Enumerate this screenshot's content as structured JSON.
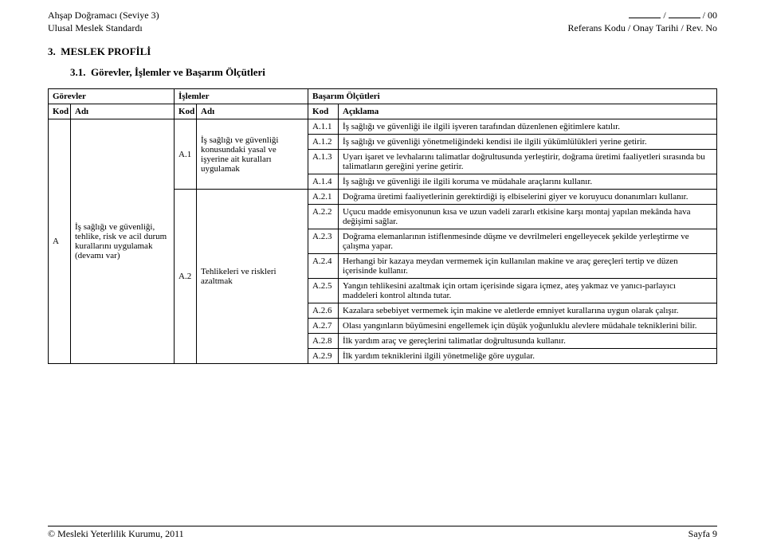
{
  "header": {
    "left_line1": "Ahşap Doğramacı (Seviye 3)",
    "left_line2": "Ulusal Meslek Standardı",
    "right_line1_sep": " / ",
    "right_line1_suffix": " / 00",
    "right_line2": "Referans Kodu / Onay Tarihi / Rev. No"
  },
  "section": {
    "num": "3.",
    "title": "MESLEK PROFİLİ",
    "sub_num": "3.1.",
    "sub_title": "Görevler, İşlemler ve Başarım Ölçütleri"
  },
  "table": {
    "h_gorevler": "Görevler",
    "h_islemler": "İşlemler",
    "h_basarim": "Başarım Ölçütleri",
    "h_kod": "Kod",
    "h_adi": "Adı",
    "h_aciklama": "Açıklama",
    "gorev_kod": "A",
    "gorev_adi": "İş sağlığı ve güvenliği, tehlike, risk ve acil durum kurallarını uygulamak (devamı var)",
    "islem1_kod": "A.1",
    "islem1_adi": "İş sağlığı ve güvenliği konusundaki yasal ve işyerine ait kuralları uygulamak",
    "islem2_kod": "A.2",
    "islem2_adi": "Tehlikeleri ve riskleri azaltmak",
    "rows": [
      {
        "kod": "A.1.1",
        "acik": "İş sağlığı ve güvenliği ile ilgili işveren tarafından düzenlenen eğitimlere katılır."
      },
      {
        "kod": "A.1.2",
        "acik": "İş sağlığı ve güvenliği yönetmeliğindeki kendisi ile ilgili yükümlülükleri yerine getirir."
      },
      {
        "kod": "A.1.3",
        "acik": "Uyarı işaret ve levhalarını talimatlar doğrultusunda yerleştirir, doğrama üretimi faaliyetleri sırasında bu talimatların gereğini yerine getirir."
      },
      {
        "kod": "A.1.4",
        "acik": "İş sağlığı ve güvenliği ile ilgili koruma ve müdahale araçlarını kullanır."
      },
      {
        "kod": "A.2.1",
        "acik": "Doğrama üretimi faaliyetlerinin gerektirdiği iş elbiselerini giyer ve koruyucu donanımları kullanır."
      },
      {
        "kod": "A.2.2",
        "acik": "Uçucu madde emisyonunun kısa ve uzun vadeli zararlı etkisine karşı montaj yapılan mekânda hava değişimi sağlar."
      },
      {
        "kod": "A.2.3",
        "acik": "Doğrama elemanlarının istiflenmesinde düşme ve devrilmeleri engelleyecek şekilde yerleştirme ve çalışma yapar."
      },
      {
        "kod": "A.2.4",
        "acik": "Herhangi bir kazaya meydan vermemek için kullanılan makine ve araç gereçleri tertip ve düzen içerisinde kullanır."
      },
      {
        "kod": "A.2.5",
        "acik": "Yangın tehlikesini azaltmak için ortam içerisinde sigara içmez, ateş yakmaz ve yanıcı-parlayıcı maddeleri kontrol altında tutar."
      },
      {
        "kod": "A.2.6",
        "acik": "Kazalara sebebiyet vermemek için makine ve aletlerde emniyet kurallarına uygun olarak çalışır."
      },
      {
        "kod": "A.2.7",
        "acik": "Olası yangınların büyümesini engellemek için düşük yoğunluklu alevlere müdahale tekniklerini bilir."
      },
      {
        "kod": "A.2.8",
        "acik": "İlk yardım araç ve gereçlerini talimatlar doğrultusunda kullanır."
      },
      {
        "kod": "A.2.9",
        "acik": "İlk yardım tekniklerini ilgili yönetmeliğe göre uygular."
      }
    ]
  },
  "footer": {
    "left": "© Mesleki Yeterlilik Kurumu, 2011",
    "right": "Sayfa 9"
  }
}
